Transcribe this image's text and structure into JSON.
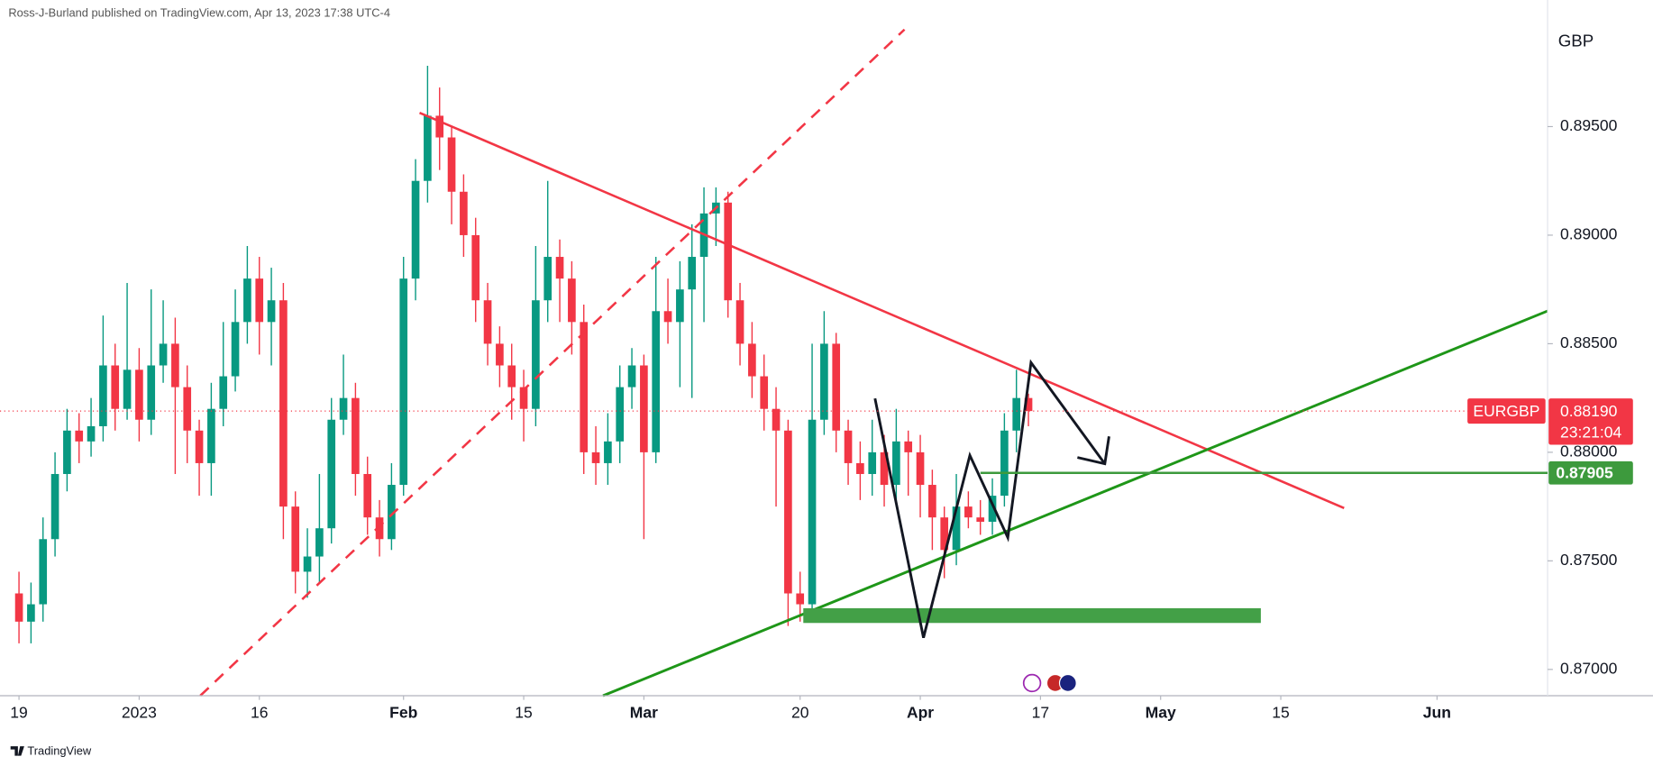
{
  "chart_data": {
    "type": "candlestick",
    "title": "Ross-J-Burland published on TradingView.com, Apr 13, 2023 17:38 UTC-4",
    "currency": "GBP",
    "footer": "TradingView",
    "series": [
      {
        "name": "EURGBP",
        "up_color": "#089981",
        "down_color": "#f23645",
        "open": [
          0.8735,
          0.8722,
          0.873,
          0.876,
          0.879,
          0.881,
          0.8805,
          0.8812,
          0.884,
          0.882,
          0.8838,
          0.8815,
          0.884,
          0.885,
          0.883,
          0.881,
          0.8795,
          0.882,
          0.8835,
          0.886,
          0.888,
          0.886,
          0.887,
          0.8775,
          0.8745,
          0.8752,
          0.8765,
          0.8815,
          0.8825,
          0.879,
          0.877,
          0.876,
          0.8785,
          0.888,
          0.8925,
          0.8955,
          0.8945,
          0.892,
          0.89,
          0.887,
          0.885,
          0.884,
          0.883,
          0.882,
          0.887,
          0.889,
          0.888,
          0.886,
          0.88,
          0.8795,
          0.8805,
          0.883,
          0.884,
          0.88,
          0.8865,
          0.886,
          0.8875,
          0.889,
          0.891,
          0.8915,
          0.887,
          0.885,
          0.8835,
          0.882,
          0.881,
          0.8735,
          0.873,
          0.8815,
          0.885,
          0.881,
          0.8795,
          0.879,
          0.88,
          0.8785,
          0.8805,
          0.88,
          0.8785,
          0.877,
          0.8755,
          0.8775,
          0.877,
          0.8768,
          0.878,
          0.881,
          0.8825
        ],
        "high": [
          0.8745,
          0.874,
          0.877,
          0.88,
          0.882,
          0.8818,
          0.8825,
          0.8863,
          0.885,
          0.8878,
          0.8848,
          0.8875,
          0.887,
          0.8862,
          0.884,
          0.8815,
          0.8832,
          0.886,
          0.8875,
          0.8895,
          0.889,
          0.8885,
          0.8878,
          0.8782,
          0.8765,
          0.879,
          0.8825,
          0.8845,
          0.8832,
          0.8798,
          0.8778,
          0.8795,
          0.889,
          0.8935,
          0.8978,
          0.8968,
          0.895,
          0.8928,
          0.8908,
          0.8878,
          0.8858,
          0.885,
          0.8838,
          0.8895,
          0.8925,
          0.8898,
          0.8888,
          0.8868,
          0.8812,
          0.8818,
          0.884,
          0.8848,
          0.8845,
          0.889,
          0.888,
          0.8888,
          0.8905,
          0.8922,
          0.8922,
          0.892,
          0.8878,
          0.886,
          0.8845,
          0.883,
          0.8815,
          0.8745,
          0.885,
          0.8865,
          0.8855,
          0.8815,
          0.8805,
          0.8815,
          0.8808,
          0.882,
          0.881,
          0.8808,
          0.8792,
          0.8775,
          0.879,
          0.8782,
          0.8778,
          0.8788,
          0.8818,
          0.8838,
          0.8827
        ],
        "low": [
          0.8712,
          0.8712,
          0.8722,
          0.8752,
          0.8782,
          0.8795,
          0.8798,
          0.8805,
          0.881,
          0.8815,
          0.8805,
          0.8808,
          0.8832,
          0.879,
          0.8795,
          0.878,
          0.878,
          0.8812,
          0.8828,
          0.885,
          0.8845,
          0.884,
          0.876,
          0.8735,
          0.8733,
          0.874,
          0.8758,
          0.8808,
          0.878,
          0.8762,
          0.8752,
          0.8755,
          0.878,
          0.887,
          0.8915,
          0.893,
          0.8905,
          0.889,
          0.886,
          0.884,
          0.883,
          0.8815,
          0.8805,
          0.8812,
          0.886,
          0.886,
          0.8845,
          0.879,
          0.8785,
          0.8785,
          0.8795,
          0.882,
          0.876,
          0.8795,
          0.885,
          0.883,
          0.8825,
          0.886,
          0.8895,
          0.8862,
          0.884,
          0.8825,
          0.881,
          0.8775,
          0.872,
          0.8722,
          0.8725,
          0.8808,
          0.88,
          0.8785,
          0.8778,
          0.878,
          0.8775,
          0.8775,
          0.878,
          0.877,
          0.8755,
          0.8742,
          0.8748,
          0.8765,
          0.8762,
          0.8762,
          0.8775,
          0.88,
          0.8812
        ],
        "close": [
          0.8722,
          0.873,
          0.876,
          0.879,
          0.881,
          0.8805,
          0.8812,
          0.884,
          0.882,
          0.8838,
          0.8815,
          0.884,
          0.885,
          0.883,
          0.881,
          0.8795,
          0.882,
          0.8835,
          0.886,
          0.888,
          0.886,
          0.887,
          0.8775,
          0.8745,
          0.8752,
          0.8765,
          0.8815,
          0.8825,
          0.879,
          0.877,
          0.876,
          0.8785,
          0.888,
          0.8925,
          0.8955,
          0.8945,
          0.892,
          0.89,
          0.887,
          0.885,
          0.884,
          0.883,
          0.882,
          0.887,
          0.889,
          0.888,
          0.886,
          0.88,
          0.8795,
          0.8805,
          0.883,
          0.884,
          0.88,
          0.8865,
          0.886,
          0.8875,
          0.889,
          0.891,
          0.8915,
          0.887,
          0.885,
          0.8835,
          0.882,
          0.881,
          0.8735,
          0.873,
          0.8815,
          0.885,
          0.881,
          0.8795,
          0.879,
          0.88,
          0.8785,
          0.8805,
          0.88,
          0.8785,
          0.877,
          0.8755,
          0.8775,
          0.877,
          0.8768,
          0.878,
          0.881,
          0.8825,
          0.8819
        ]
      }
    ],
    "xlim": [
      -1.58,
      127.2
    ],
    "xticks": [
      {
        "value": 0,
        "label": "19"
      },
      {
        "value": 10,
        "label": "2023"
      },
      {
        "value": 20,
        "label": "16"
      },
      {
        "value": 32,
        "label": "Feb"
      },
      {
        "value": 42,
        "label": "15"
      },
      {
        "value": 52,
        "label": "Mar"
      },
      {
        "value": 65,
        "label": "20"
      },
      {
        "value": 75,
        "label": "Apr"
      },
      {
        "value": 85,
        "label": "17"
      },
      {
        "value": 95,
        "label": "May"
      },
      {
        "value": 105,
        "label": "15"
      },
      {
        "value": 118,
        "label": "Jun"
      }
    ],
    "ylim": [
      0.86879,
      0.90083
    ],
    "yticks": [
      {
        "value": 0.87,
        "label": "0.87000"
      },
      {
        "value": 0.875,
        "label": "0.87500"
      },
      {
        "value": 0.88,
        "label": "0.88000"
      },
      {
        "value": 0.885,
        "label": "0.88500"
      },
      {
        "value": 0.89,
        "label": "0.89000"
      },
      {
        "value": 0.895,
        "label": "0.89500"
      }
    ],
    "last_price": {
      "value": 0.8819,
      "label": "0.88190",
      "color": "#f23645"
    },
    "countdown": "23:21:04",
    "level": {
      "value": 0.87905,
      "label": "0.87905",
      "color": "#3d9a3d"
    }
  }
}
